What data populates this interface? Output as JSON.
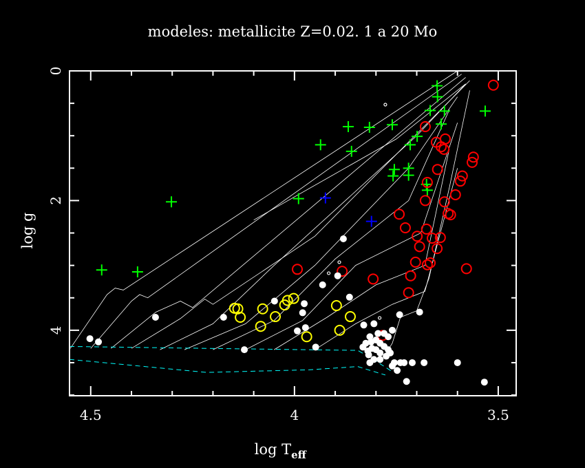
{
  "chart_data": {
    "type": "scatter",
    "title": "modeles: metallicite Z=0.02. 1 a 20 Mo",
    "xlabel": "log T",
    "xlabel_sub": "eff",
    "ylabel": "log g",
    "xlim": [
      4.552,
      3.456
    ],
    "ylim": [
      0,
      5.01
    ],
    "x_ticks": [
      {
        "v": 4.5,
        "label": "4.5"
      },
      {
        "v": 4,
        "label": "4"
      },
      {
        "v": 3.5,
        "label": "3.5"
      }
    ],
    "y_ticks": [
      {
        "v": 0,
        "label": "0"
      },
      {
        "v": 2,
        "label": "2"
      },
      {
        "v": 4,
        "label": "4"
      }
    ],
    "colors": {
      "green": "#00ff00",
      "blue": "#0000ff",
      "red": "#ff0000",
      "yellow": "#ffff00",
      "white": "#ffffff",
      "cyan": "#00ffff"
    },
    "series": [
      {
        "name": "green-plus",
        "marker": "plus",
        "color": "#00ff00",
        "points": [
          [
            4.473,
            3.07
          ],
          [
            4.385,
            3.1
          ],
          [
            4.302,
            2.02
          ],
          [
            3.99,
            1.97
          ],
          [
            3.936,
            1.14
          ],
          [
            3.868,
            0.86
          ],
          [
            3.86,
            1.24
          ],
          [
            3.816,
            0.87
          ],
          [
            3.76,
            0.83
          ],
          [
            3.755,
            1.52
          ],
          [
            3.758,
            1.62
          ],
          [
            3.72,
            1.5
          ],
          [
            3.72,
            1.61
          ],
          [
            3.716,
            1.14
          ],
          [
            3.699,
            1.01
          ],
          [
            3.676,
            1.75
          ],
          [
            3.674,
            1.84
          ],
          [
            3.667,
            0.61
          ],
          [
            3.65,
            0.23
          ],
          [
            3.649,
            0.4
          ],
          [
            3.64,
            0.82
          ],
          [
            3.632,
            0.62
          ],
          [
            3.532,
            0.62
          ]
        ]
      },
      {
        "name": "blue-plus",
        "marker": "plus",
        "color": "#0000ff",
        "points": [
          [
            3.924,
            1.96
          ],
          [
            3.811,
            2.32
          ]
        ]
      },
      {
        "name": "red-circle",
        "marker": "circle",
        "color": "#ff0000",
        "points": [
          [
            3.512,
            0.22
          ],
          [
            3.679,
            0.86
          ],
          [
            3.652,
            1.1
          ],
          [
            3.64,
            1.17
          ],
          [
            3.63,
            1.05
          ],
          [
            3.633,
            1.21
          ],
          [
            3.649,
            1.52
          ],
          [
            3.561,
            1.33
          ],
          [
            3.564,
            1.41
          ],
          [
            3.674,
            1.72
          ],
          [
            3.588,
            1.62
          ],
          [
            3.593,
            1.7
          ],
          [
            3.605,
            1.91
          ],
          [
            3.679,
            2.0
          ],
          [
            3.632,
            2.02
          ],
          [
            3.623,
            2.2
          ],
          [
            3.617,
            2.22
          ],
          [
            3.743,
            2.21
          ],
          [
            3.728,
            2.42
          ],
          [
            3.699,
            2.55
          ],
          [
            3.676,
            2.44
          ],
          [
            3.662,
            2.58
          ],
          [
            3.642,
            2.57
          ],
          [
            3.693,
            2.71
          ],
          [
            3.65,
            2.74
          ],
          [
            3.703,
            2.95
          ],
          [
            3.674,
            2.99
          ],
          [
            3.667,
            2.96
          ],
          [
            3.715,
            3.16
          ],
          [
            3.578,
            3.05
          ],
          [
            3.72,
            3.42
          ],
          [
            3.993,
            3.06
          ],
          [
            3.883,
            3.09
          ],
          [
            3.807,
            3.21
          ],
          [
            3.784,
            4.08
          ]
        ]
      },
      {
        "name": "yellow-circle",
        "marker": "circle",
        "color": "#ffff00",
        "points": [
          [
            4.147,
            3.66
          ],
          [
            4.139,
            3.67
          ],
          [
            4.133,
            3.8
          ],
          [
            4.078,
            3.67
          ],
          [
            4.083,
            3.94
          ],
          [
            4.047,
            3.79
          ],
          [
            4.024,
            3.61
          ],
          [
            4.017,
            3.54
          ],
          [
            4.002,
            3.51
          ],
          [
            3.97,
            4.1
          ],
          [
            3.897,
            3.62
          ],
          [
            3.889,
            4.0
          ],
          [
            3.863,
            3.79
          ]
        ]
      },
      {
        "name": "white-dot",
        "marker": "dot",
        "color": "#ffffff",
        "points": [
          [
            4.502,
            4.13
          ],
          [
            4.481,
            4.18
          ],
          [
            4.341,
            3.8
          ],
          [
            4.174,
            3.8
          ],
          [
            4.123,
            4.3
          ],
          [
            4.049,
            3.55
          ],
          [
            3.976,
            3.59
          ],
          [
            3.98,
            3.73
          ],
          [
            3.973,
            3.96
          ],
          [
            3.993,
            4.01
          ],
          [
            3.948,
            4.26
          ],
          [
            3.931,
            3.3
          ],
          [
            3.894,
            3.16
          ],
          [
            3.88,
            2.59
          ],
          [
            3.865,
            3.49
          ],
          [
            3.693,
            3.72
          ],
          [
            3.742,
            3.76
          ],
          [
            3.682,
            4.5
          ],
          [
            3.711,
            4.5
          ],
          [
            3.725,
            4.79
          ],
          [
            3.6,
            4.5
          ],
          [
            3.534,
            4.8
          ],
          [
            3.731,
            4.5
          ],
          [
            3.83,
            3.92
          ],
          [
            3.805,
            3.9
          ],
          [
            3.815,
            4.1
          ],
          [
            3.8,
            4.15
          ],
          [
            3.79,
            4.2
          ],
          [
            3.78,
            4.05
          ],
          [
            3.77,
            4.1
          ],
          [
            3.825,
            4.2
          ],
          [
            3.82,
            4.32
          ],
          [
            3.81,
            4.28
          ],
          [
            3.8,
            4.3
          ],
          [
            3.79,
            4.35
          ],
          [
            3.78,
            4.25
          ],
          [
            3.77,
            4.3
          ],
          [
            3.76,
            4.0
          ],
          [
            3.765,
            4.35
          ],
          [
            3.805,
            4.45
          ],
          [
            3.79,
            4.45
          ],
          [
            3.775,
            4.4
          ],
          [
            3.818,
            4.38
          ],
          [
            3.832,
            4.26
          ],
          [
            3.795,
            4.05
          ],
          [
            3.812,
            4.18
          ],
          [
            3.76,
            4.55
          ],
          [
            3.748,
            4.62
          ],
          [
            3.755,
            4.5
          ],
          [
            3.74,
            4.5
          ],
          [
            3.815,
            4.5
          ]
        ]
      },
      {
        "name": "white-open-circle",
        "marker": "smallring",
        "color": "#ffffff",
        "points": [
          [
            3.777,
            0.52
          ],
          [
            3.89,
            2.95
          ],
          [
            3.916,
            3.12
          ],
          [
            3.791,
            3.81
          ]
        ]
      }
    ],
    "tracks": [
      [
        [
          4.55,
          4.28
        ],
        [
          4.46,
          3.45
        ],
        [
          4.44,
          3.35
        ],
        [
          4.42,
          3.38
        ],
        [
          3.6,
          0.0
        ]
      ],
      [
        [
          4.5,
          4.28
        ],
        [
          4.4,
          3.55
        ],
        [
          4.38,
          3.45
        ],
        [
          4.36,
          3.5
        ],
        [
          3.59,
          0.05
        ]
      ],
      [
        [
          4.45,
          4.28
        ],
        [
          4.34,
          3.72
        ],
        [
          4.28,
          3.55
        ],
        [
          4.25,
          3.65
        ],
        [
          3.58,
          0.1
        ]
      ],
      [
        [
          4.4,
          4.28
        ],
        [
          4.28,
          3.82
        ],
        [
          4.22,
          3.52
        ],
        [
          4.2,
          3.6
        ],
        [
          3.95,
          2.55
        ],
        [
          3.57,
          0.15
        ]
      ],
      [
        [
          4.1,
          2.3
        ],
        [
          3.75,
          1.05
        ],
        [
          3.58,
          0.2
        ]
      ],
      [
        [
          4.33,
          4.3
        ],
        [
          4.2,
          3.9
        ],
        [
          4.05,
          3.0
        ],
        [
          3.7,
          1.0
        ],
        [
          3.58,
          0.2
        ]
      ],
      [
        [
          4.27,
          4.3
        ],
        [
          4.12,
          3.9
        ],
        [
          3.95,
          3.0
        ],
        [
          3.72,
          1.5
        ],
        [
          3.6,
          0.4
        ]
      ],
      [
        [
          4.2,
          4.3
        ],
        [
          4.05,
          3.85
        ],
        [
          3.9,
          2.9
        ],
        [
          3.72,
          2.0
        ],
        [
          3.62,
          0.6
        ]
      ],
      [
        [
          4.12,
          4.3
        ],
        [
          3.98,
          3.85
        ],
        [
          3.85,
          3.0
        ],
        [
          3.69,
          2.5
        ],
        [
          3.6,
          0.8
        ]
      ],
      [
        [
          4.05,
          4.3
        ],
        [
          3.92,
          3.8
        ],
        [
          3.8,
          3.3
        ],
        [
          3.68,
          3.0
        ],
        [
          3.62,
          1.2
        ]
      ],
      [
        [
          3.95,
          4.3
        ],
        [
          3.85,
          3.9
        ],
        [
          3.76,
          3.6
        ],
        [
          3.68,
          3.4
        ],
        [
          3.6,
          1.5
        ]
      ],
      [
        [
          3.78,
          4.4
        ],
        [
          3.76,
          4.2
        ],
        [
          3.74,
          3.8
        ],
        [
          3.7,
          3.7
        ],
        [
          3.67,
          3.2
        ],
        [
          3.62,
          1.8
        ],
        [
          3.57,
          0.3
        ]
      ]
    ],
    "dashed_lines": [
      [
        [
          4.552,
          4.25
        ],
        [
          4.216,
          4.28
        ],
        [
          3.845,
          4.31
        ],
        [
          3.811,
          4.43
        ],
        [
          3.76,
          4.64
        ]
      ],
      [
        [
          4.552,
          4.45
        ],
        [
          4.216,
          4.65
        ],
        [
          3.963,
          4.61
        ],
        [
          3.845,
          4.56
        ],
        [
          3.777,
          4.69
        ]
      ]
    ]
  }
}
